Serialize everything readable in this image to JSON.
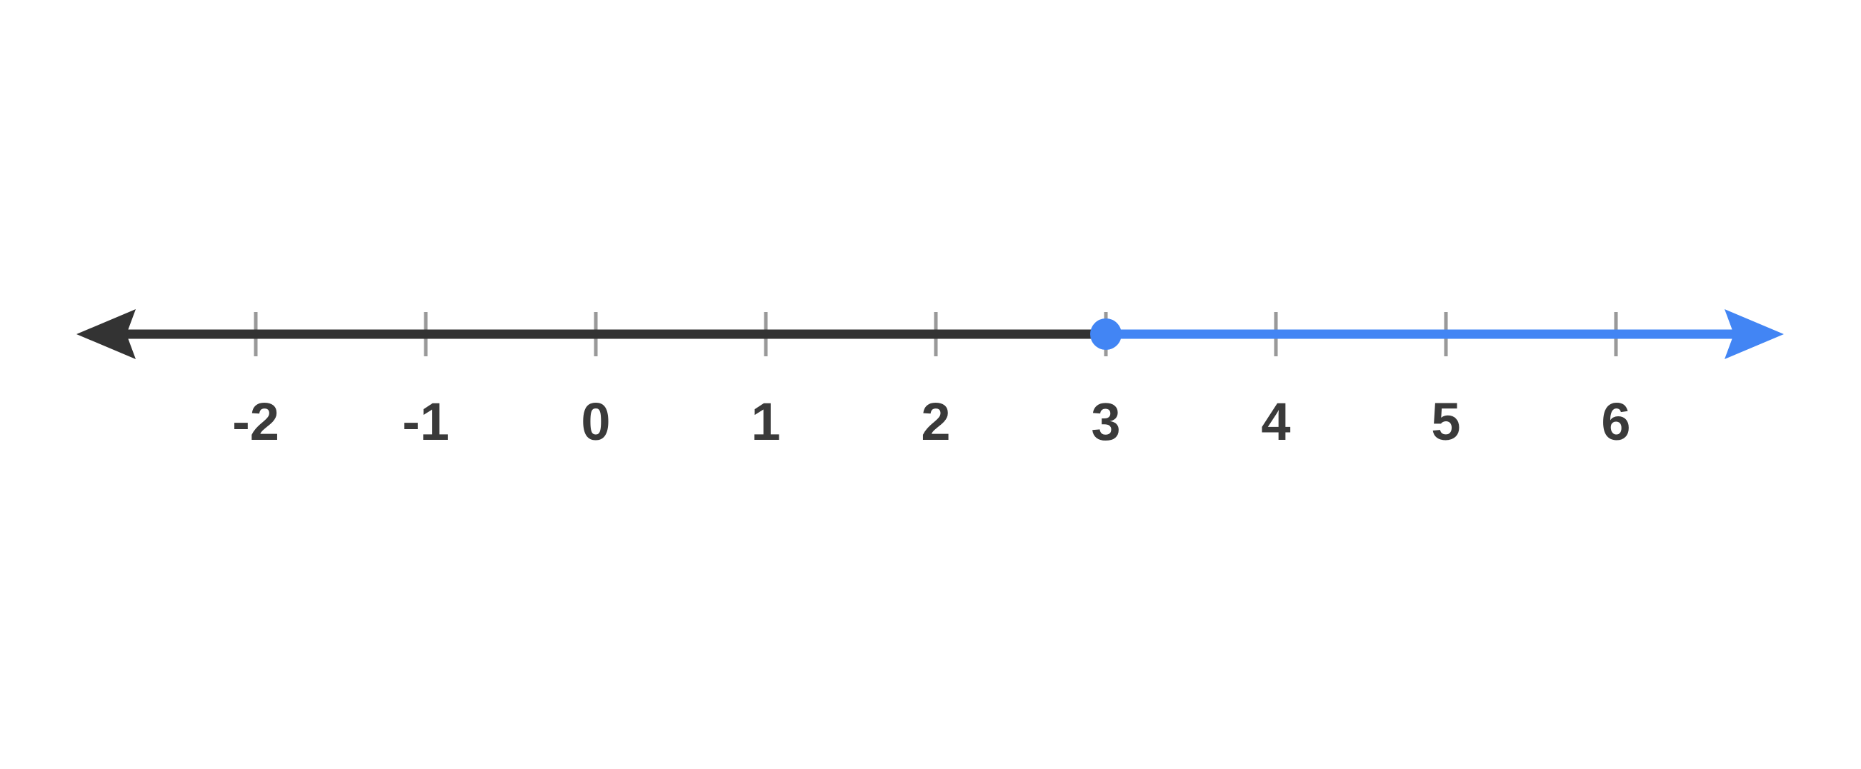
{
  "figure": {
    "title": "number line graph of an inequality",
    "description": "closed point at 3 with ray extending right"
  },
  "colors": {
    "background": "#ffffff",
    "axis_line": "#333333",
    "ray": "#4285F4",
    "point_fill": "#4285F4",
    "tick": "#999999",
    "label": "#3a3a3a"
  },
  "chart_data": {
    "type": "number_line",
    "tick_values": [
      -2,
      -1,
      0,
      1,
      2,
      3,
      4,
      5,
      6
    ],
    "tick_labels": [
      "-2",
      "-1",
      "0",
      "1",
      "2",
      "3",
      "4",
      "5",
      "6"
    ],
    "axis_range_visible": [
      -2,
      6
    ],
    "point": {
      "value": 3,
      "style": "closed",
      "color": "#4285F4"
    },
    "ray": {
      "from": 3,
      "direction": "right",
      "color": "#4285F4"
    },
    "left_arrow": true,
    "right_arrow": true,
    "grid": false,
    "legend": false,
    "xlabel": "",
    "ylabel": ""
  }
}
